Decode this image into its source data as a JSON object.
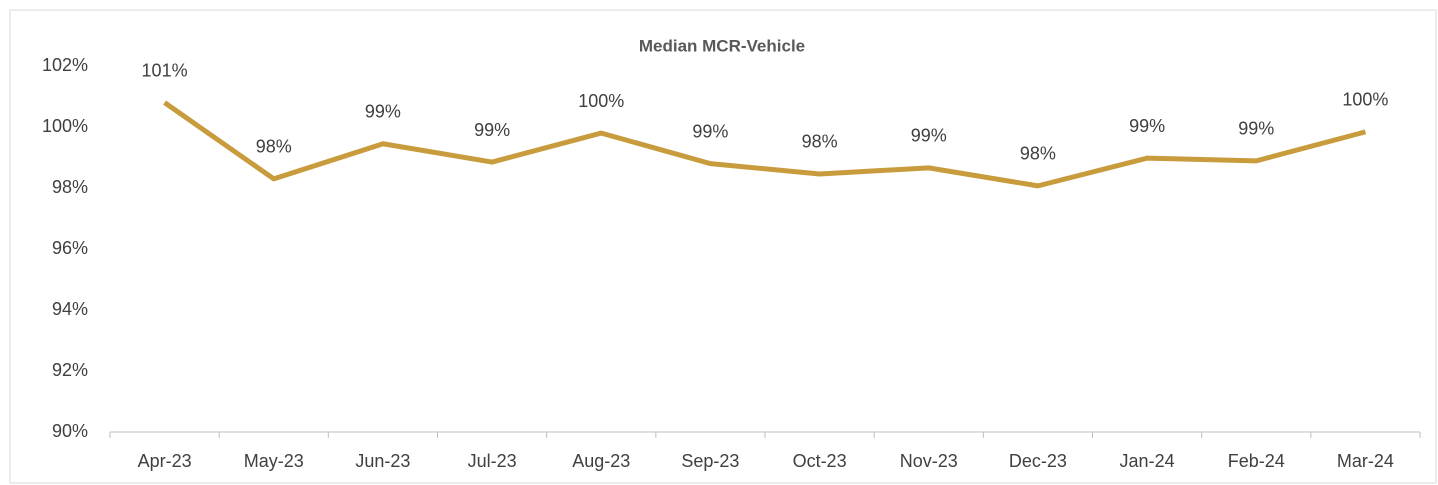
{
  "chart_data": {
    "type": "line",
    "title": "Median MCR-Vehicle",
    "categories": [
      "Apr-23",
      "May-23",
      "Jun-23",
      "Jul-23",
      "Aug-23",
      "Sep-23",
      "Oct-23",
      "Nov-23",
      "Dec-23",
      "Jan-24",
      "Feb-24",
      "Mar-24"
    ],
    "series": [
      {
        "name": "Median MCR-Vehicle",
        "color": "#c89b3c",
        "values": [
          100.8,
          98.3,
          99.45,
          98.85,
          99.8,
          98.8,
          98.46,
          98.66,
          98.07,
          98.98,
          98.89,
          99.84
        ],
        "value_labels": [
          "101%",
          "98%",
          "99%",
          "99%",
          "100%",
          "99%",
          "98%",
          "99%",
          "98%",
          "99%",
          "99%",
          "100%"
        ]
      }
    ],
    "ylim": [
      90,
      102
    ],
    "yticks": [
      {
        "value": 90,
        "label": "90%"
      },
      {
        "value": 92,
        "label": "92%"
      },
      {
        "value": 94,
        "label": "94%"
      },
      {
        "value": 96,
        "label": "96%"
      },
      {
        "value": 98,
        "label": "98%"
      },
      {
        "value": 100,
        "label": "100%"
      },
      {
        "value": 102,
        "label": "102%"
      }
    ],
    "grid": false
  }
}
